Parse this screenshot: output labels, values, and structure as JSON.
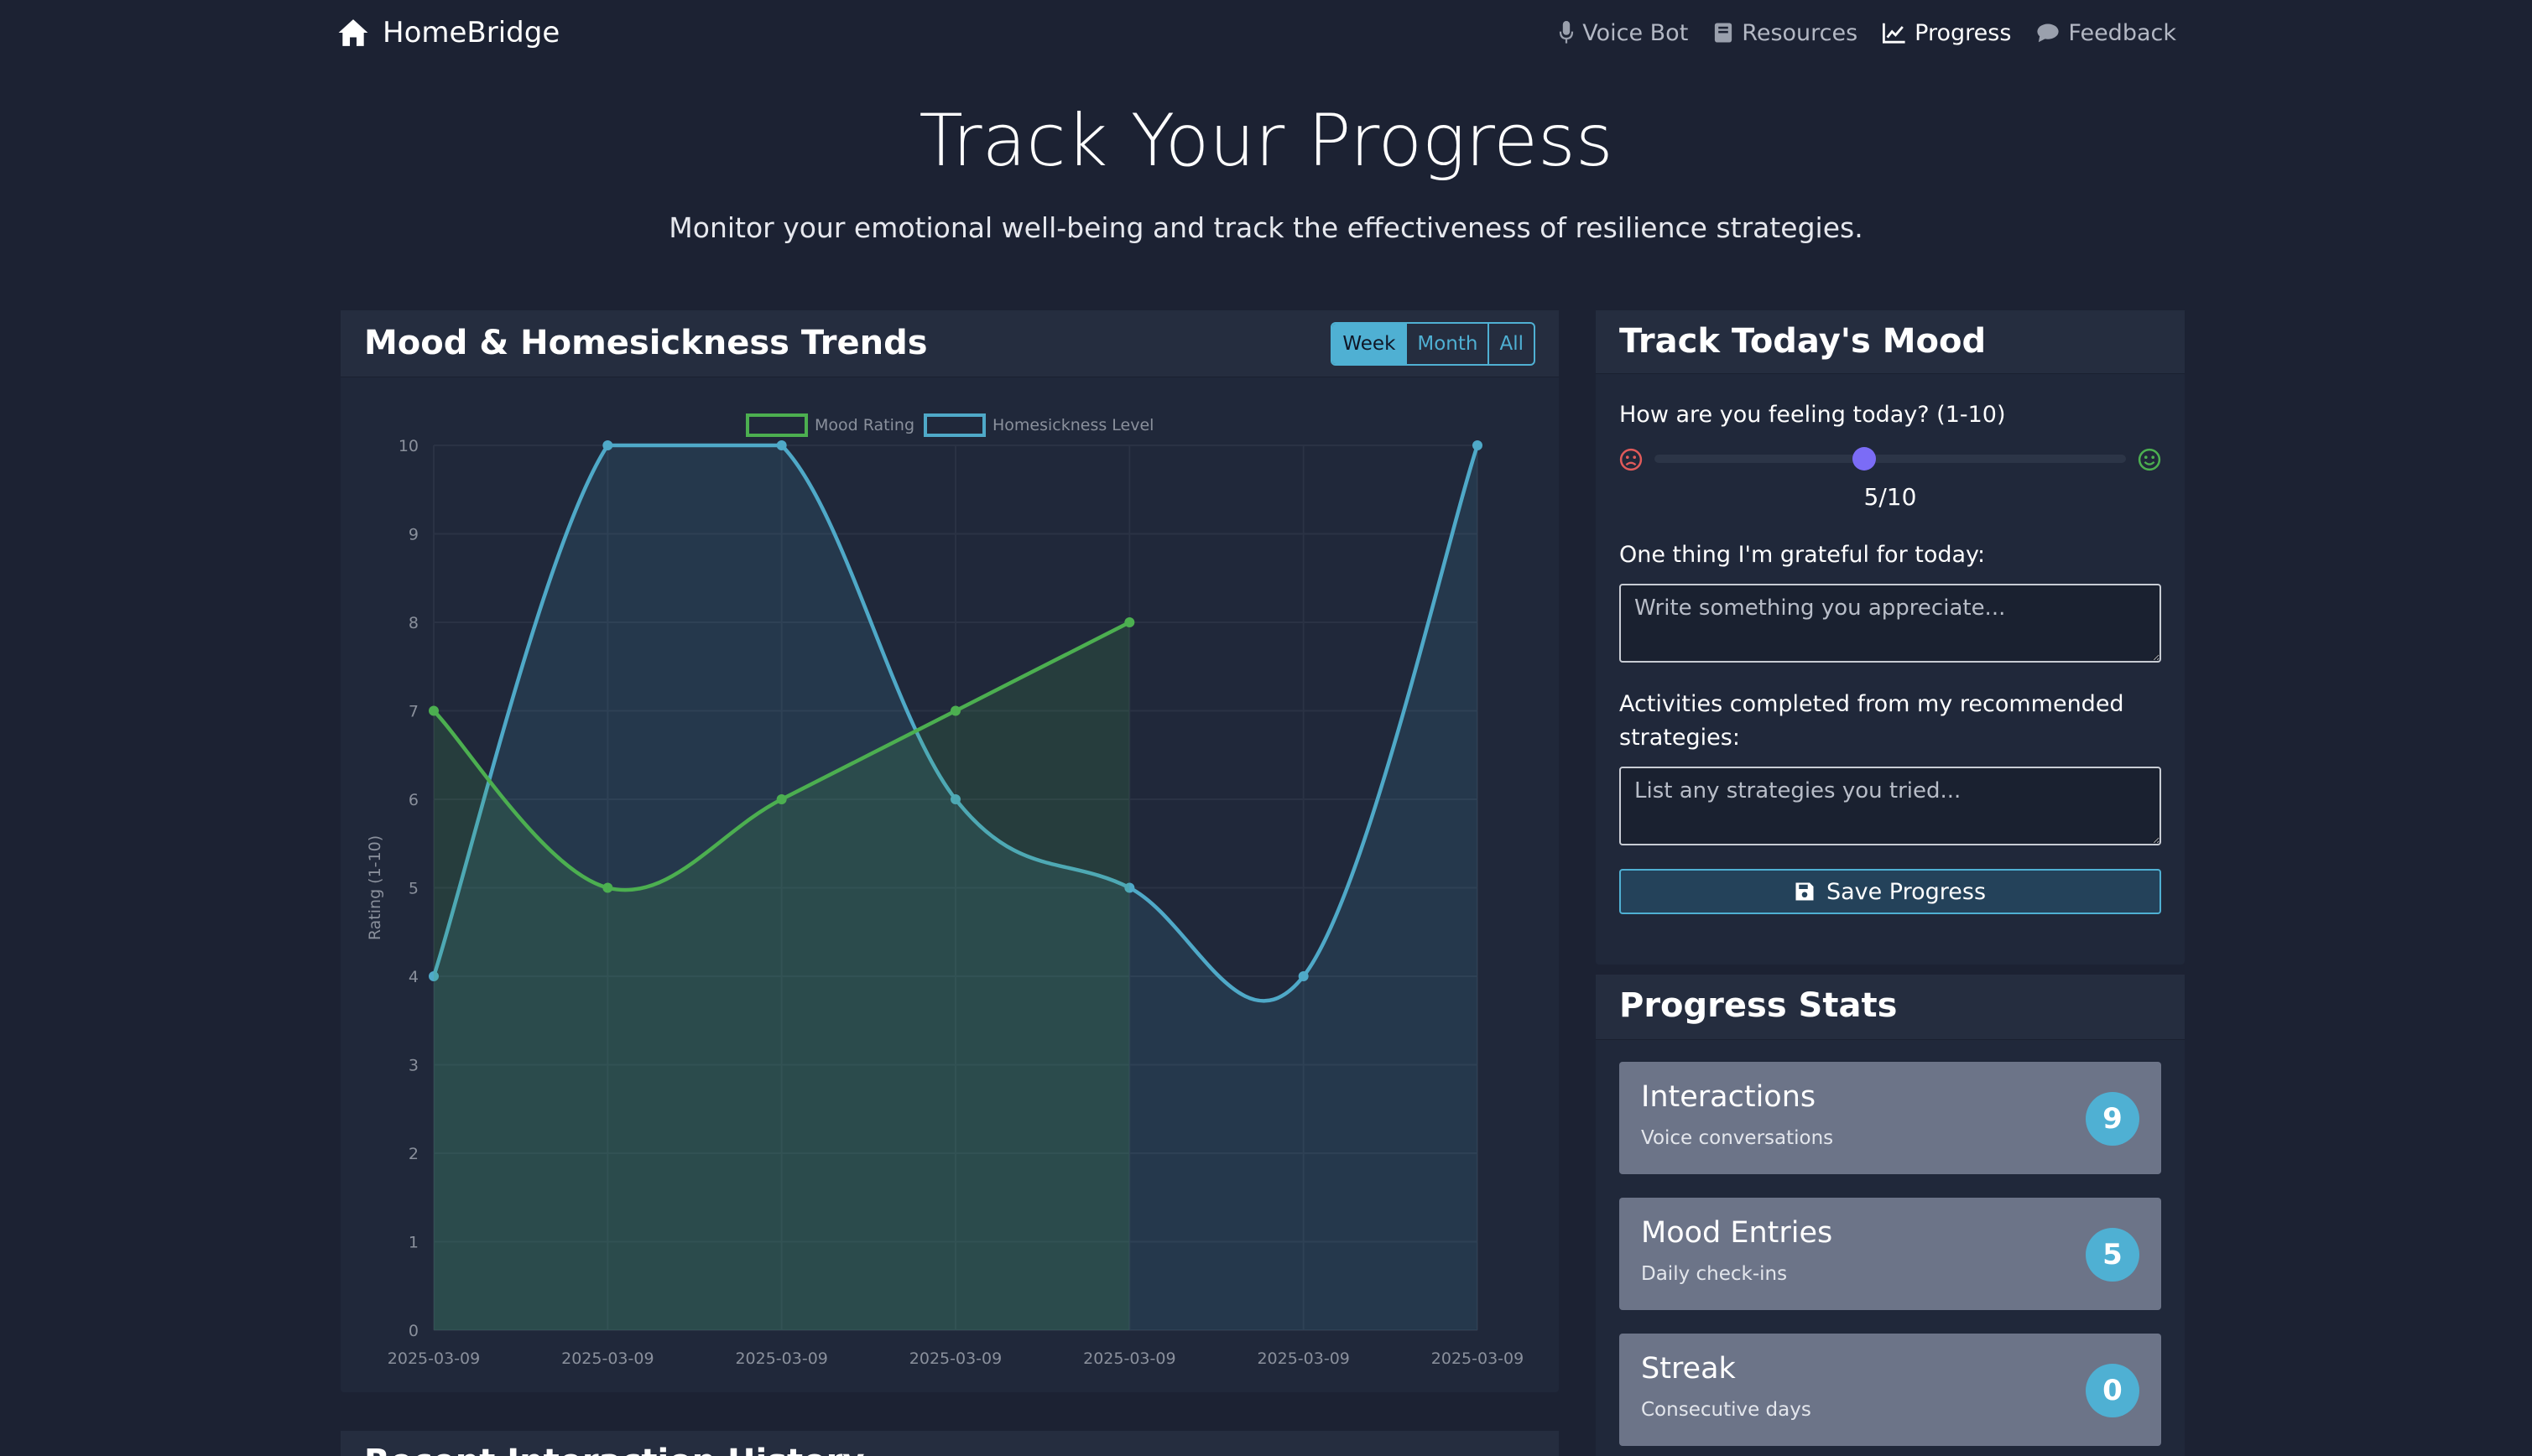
{
  "nav": {
    "brand": "HomeBridge",
    "links": [
      {
        "label": "Voice Bot",
        "icon": "microphone-icon"
      },
      {
        "label": "Resources",
        "icon": "book-icon"
      },
      {
        "label": "Progress",
        "icon": "line-chart-icon",
        "active": true
      },
      {
        "label": "Feedback",
        "icon": "comment-icon"
      }
    ]
  },
  "header": {
    "title": "Track Your Progress",
    "subtitle": "Monitor your emotional well-being and track the effectiveness of resilience strategies."
  },
  "trends": {
    "title": "Mood & Homesickness Trends",
    "ranges": [
      "Week",
      "Month",
      "All"
    ],
    "active_range": "Week"
  },
  "chart_data": {
    "type": "line",
    "title": "",
    "xlabel": "",
    "ylabel": "Rating (1-10)",
    "ylim": [
      0,
      10
    ],
    "yticks": [
      0,
      1,
      2,
      3,
      4,
      5,
      6,
      7,
      8,
      9,
      10
    ],
    "categories": [
      "2025-03-09",
      "2025-03-09",
      "2025-03-09",
      "2025-03-09",
      "2025-03-09",
      "2025-03-09",
      "2025-03-09"
    ],
    "legend_position": "top",
    "grid": true,
    "fill": true,
    "series": [
      {
        "name": "Mood Rating",
        "color": "#4caf50",
        "values": [
          7,
          5,
          6,
          7,
          8,
          null,
          null
        ]
      },
      {
        "name": "Homesickness Level",
        "color": "#4fa9c8",
        "values": [
          4,
          10,
          10,
          6,
          5,
          4,
          10
        ]
      }
    ]
  },
  "mood_form": {
    "title": "Track Today's Mood",
    "question": "How are you feeling today? (1-10)",
    "mood_value": 5,
    "mood_min": 1,
    "mood_max": 10,
    "mood_display": "5/10",
    "grateful_label": "One thing I'm grateful for today:",
    "grateful_placeholder": "Write something you appreciate...",
    "activities_label": "Activities completed from my recommended strategies:",
    "activities_placeholder": "List any strategies you tried...",
    "save_label": "Save Progress",
    "sad_color": "#e05a5a",
    "happy_color": "#4caf50",
    "accent": "#7b6cf6"
  },
  "stats": {
    "title": "Progress Stats",
    "items": [
      {
        "title": "Interactions",
        "sub": "Voice conversations",
        "value": "9"
      },
      {
        "title": "Mood Entries",
        "sub": "Daily check-ins",
        "value": "5"
      },
      {
        "title": "Streak",
        "sub": "Consecutive days",
        "value": "0"
      }
    ]
  },
  "history": {
    "title": "Recent Interaction History"
  }
}
